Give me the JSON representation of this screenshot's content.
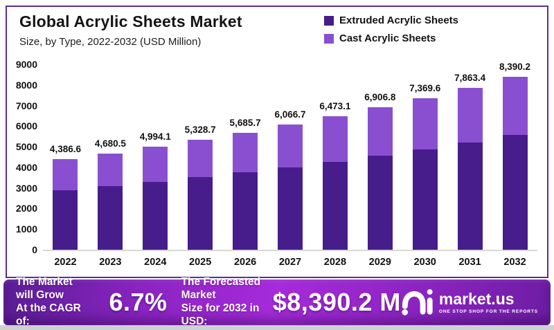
{
  "header": {
    "title": "Global Acrylic Sheets Market",
    "subtitle": "Size, by Type, 2022-2032 (USD Million)"
  },
  "legend": {
    "items": [
      {
        "label": "Extruded Acrylic Sheets",
        "color": "#471D8B"
      },
      {
        "label": "Cast Acrylic Sheets",
        "color": "#8A4FD0"
      }
    ]
  },
  "chart_data": {
    "type": "bar",
    "stacked": true,
    "title": "Global Acrylic Sheets Market",
    "subtitle": "Size, by Type, 2022-2032 (USD Million)",
    "categories": [
      "2022",
      "2023",
      "2024",
      "2025",
      "2026",
      "2027",
      "2028",
      "2029",
      "2030",
      "2031",
      "2032"
    ],
    "series": [
      {
        "name": "Extruded Acrylic Sheets",
        "color": "#471D8B",
        "values": [
          2895,
          3090,
          3295,
          3515,
          3750,
          4005,
          4270,
          4560,
          4865,
          5200,
          5570
        ]
      },
      {
        "name": "Cast Acrylic Sheets",
        "color": "#8A4FD0",
        "values": [
          1491.6,
          1590.5,
          1699.1,
          1813.7,
          1935.7,
          2061.7,
          2203.1,
          2346.8,
          2504.6,
          2663.4,
          2820.2
        ]
      }
    ],
    "totals": [
      4386.6,
      4680.5,
      4994.1,
      5328.7,
      5685.7,
      6066.7,
      6473.1,
      6906.8,
      7369.6,
      7863.4,
      8390.2
    ],
    "total_labels": [
      "4,386.6",
      "4,680.5",
      "4,994.1",
      "5,328.7",
      "5,685.7",
      "6,066.7",
      "6,473.1",
      "6,906.8",
      "7,369.6",
      "7,863.4",
      "8,390.2"
    ],
    "ylim": [
      0,
      9000
    ],
    "ytick_step": 1000,
    "grid": false,
    "legend_position": "top-right"
  },
  "footer": {
    "cagr_label": [
      "The Market will Grow",
      "At the CAGR of:"
    ],
    "cagr_value": "6.7%",
    "forecast_label": [
      "The Forecasted Market",
      "Size for 2032 in USD:"
    ],
    "forecast_value": "$8,390.2 M",
    "brand": {
      "name": "market.us",
      "tagline": "ONE STOP SHOP FOR THE REPORTS"
    }
  }
}
